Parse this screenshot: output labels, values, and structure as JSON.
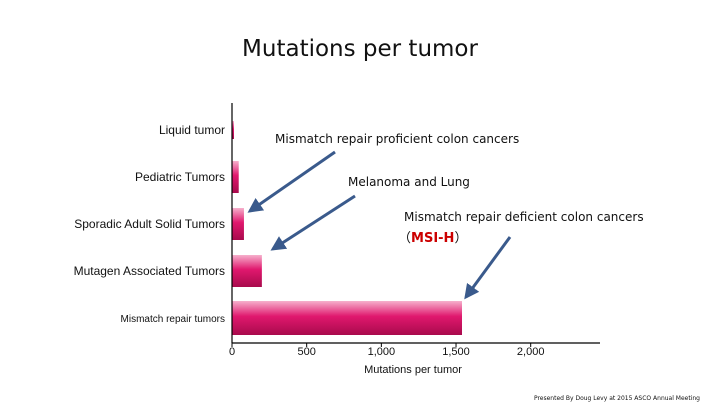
{
  "chart_data": {
    "type": "bar",
    "orientation": "horizontal",
    "title": "Mutations per tumor",
    "xlabel": "Mutations per tumor",
    "ylabel": "",
    "categories": [
      "Liquid tumor",
      "Pediatric Tumors",
      "Sporadic Adult Solid Tumors",
      "Mutagen Associated Tumors",
      "Mismatch repair tumors"
    ],
    "values": [
      10,
      45,
      80,
      200,
      1540
    ],
    "xlim": [
      0,
      2400
    ],
    "xticks": [
      0,
      500,
      1000,
      1500,
      2000
    ],
    "xtick_labels": [
      "0",
      "500",
      "1,000",
      "1,500",
      "2,000"
    ],
    "grid": false,
    "bar_color": "#e0186e",
    "arrow_color": "#3a5a8c",
    "highlight_color": "#cc0000",
    "annotations": {
      "proficient": "Mismatch repair proficient colon cancers",
      "melanoma": "Melanoma and Lung",
      "deficient": "Mismatch repair deficient colon cancers",
      "msi_open": "（",
      "msi": "MSI-H",
      "msi_close": "）"
    },
    "footer": "Presented By Doug Levy at 2015 ASCO Annual Meeting"
  }
}
